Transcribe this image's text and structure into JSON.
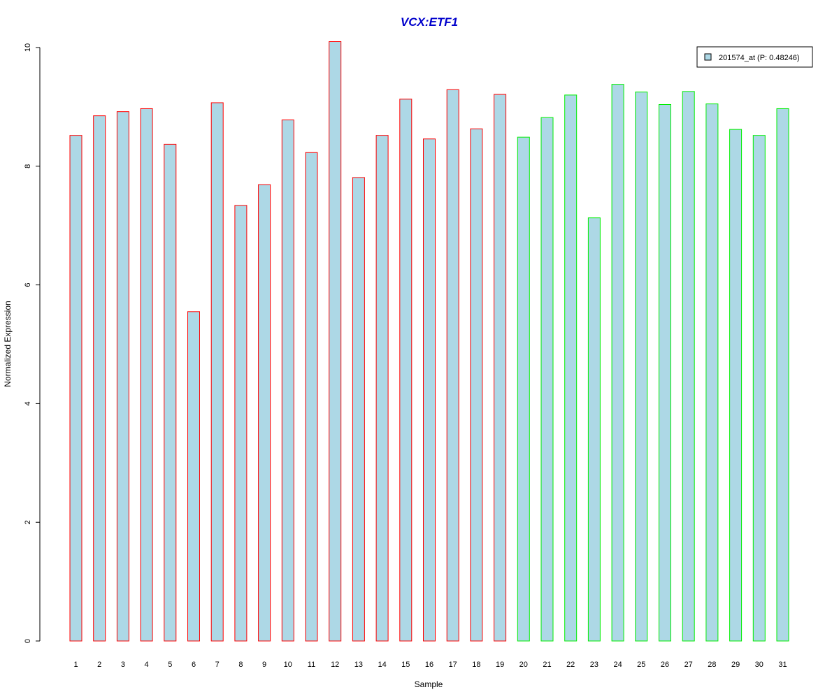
{
  "chart_data": {
    "type": "bar",
    "title": "VCX:ETF1",
    "xlabel": "Sample",
    "ylabel": "Normalized Expression",
    "ylim": [
      0,
      10
    ],
    "yticks": [
      0,
      2,
      4,
      6,
      8,
      10
    ],
    "grid": false,
    "legend_position": "top-right",
    "categories": [
      "1",
      "2",
      "3",
      "4",
      "5",
      "6",
      "7",
      "8",
      "9",
      "10",
      "11",
      "12",
      "13",
      "14",
      "15",
      "16",
      "17",
      "18",
      "19",
      "20",
      "21",
      "22",
      "23",
      "24",
      "25",
      "26",
      "27",
      "28",
      "29",
      "30",
      "31"
    ],
    "series": [
      {
        "name": "201574_at (P: 0.48246)",
        "values": [
          8.52,
          8.85,
          8.92,
          8.97,
          8.37,
          5.55,
          9.07,
          7.34,
          7.69,
          8.78,
          8.23,
          10.1,
          7.81,
          8.52,
          9.13,
          8.46,
          9.29,
          8.63,
          9.21,
          8.49,
          8.82,
          9.2,
          7.13,
          9.38,
          9.25,
          9.04,
          9.26,
          9.05,
          8.62,
          8.52,
          8.97
        ]
      }
    ],
    "groups": [
      {
        "samples": "1-19",
        "border_color": "#ff0000"
      },
      {
        "samples": "20-31",
        "border_color": "#00ee00"
      }
    ],
    "bar_border_colors": [
      "#ff0000",
      "#ff0000",
      "#ff0000",
      "#ff0000",
      "#ff0000",
      "#ff0000",
      "#ff0000",
      "#ff0000",
      "#ff0000",
      "#ff0000",
      "#ff0000",
      "#ff0000",
      "#ff0000",
      "#ff0000",
      "#ff0000",
      "#ff0000",
      "#ff0000",
      "#ff0000",
      "#ff0000",
      "#00ee00",
      "#00ee00",
      "#00ee00",
      "#00ee00",
      "#00ee00",
      "#00ee00",
      "#00ee00",
      "#00ee00",
      "#00ee00",
      "#00ee00",
      "#00ee00",
      "#00ee00"
    ],
    "colors": {
      "bar_fill": "#add8e6",
      "title": "#0000cc",
      "axis": "#000000"
    }
  }
}
